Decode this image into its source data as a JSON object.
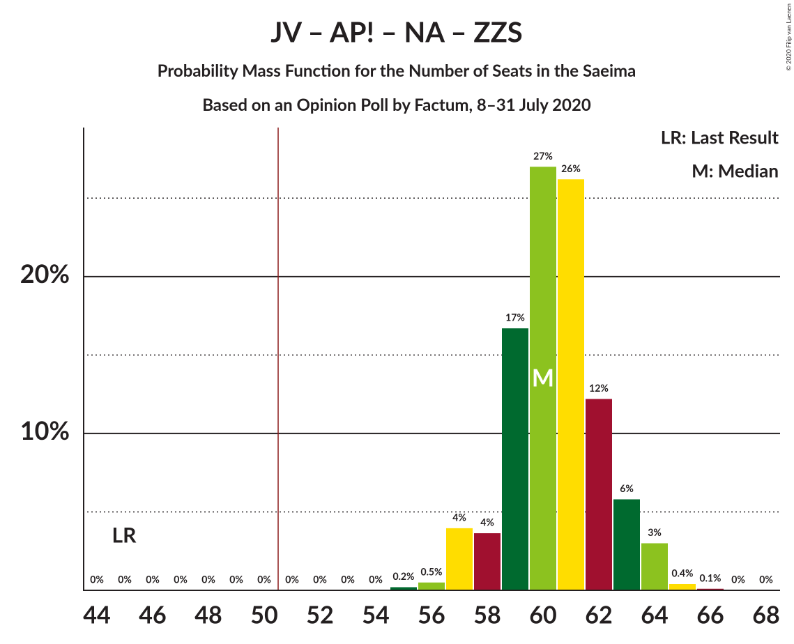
{
  "chart_data": {
    "type": "bar",
    "title": "JV – AP! – NA – ZZS",
    "subtitle": "Probability Mass Function for the Number of Seats in the Saeima",
    "subtitle2": "Based on an Opinion Poll by Factum, 8–31 July 2020",
    "copyright": "© 2020 Filip van Laenen",
    "categories": [
      44,
      null,
      46,
      null,
      48,
      null,
      50,
      null,
      52,
      null,
      54,
      null,
      56,
      null,
      58,
      null,
      60,
      null,
      62,
      null,
      64,
      null,
      66,
      null,
      68
    ],
    "values": [
      0,
      0,
      0,
      0,
      0,
      0,
      0,
      0,
      0,
      0,
      0,
      0.2,
      0.5,
      3.96,
      3.64,
      16.7,
      27.0,
      26.2,
      12.2,
      5.8,
      3.0,
      0.4,
      0.1,
      0,
      0
    ],
    "value_labels": [
      "0%",
      "0%",
      "0%",
      "0%",
      "0%",
      "0%",
      "0%",
      "0%",
      "0%",
      "0%",
      "0%",
      "0.2%",
      "0.5%",
      "4%",
      "4%",
      "17%",
      "27%",
      "26%",
      "12%",
      "6%",
      "3%",
      "0.4%",
      "0.1%",
      "0%",
      "0%"
    ],
    "colors": [
      "#8cc21f",
      "#ffdd00",
      "#a0102f",
      "#006a2f",
      "#8cc21f",
      "#ffdd00",
      "#a0102f",
      "#006a2f",
      "#8cc21f",
      "#ffdd00",
      "#a0102f",
      "#006a2f",
      "#8cc21f",
      "#ffdd00",
      "#a0102f",
      "#006a2f",
      "#8cc21f",
      "#ffdd00",
      "#a0102f",
      "#006a2f",
      "#8cc21f",
      "#ffdd00",
      "#a0102f",
      "#006a2f",
      "#8cc21f"
    ],
    "ylim": [
      0,
      29.5
    ],
    "yticks": [
      {
        "value": 10,
        "label": "10%"
      },
      {
        "value": 20,
        "label": "20%"
      }
    ],
    "minor_yticks": [
      5,
      15,
      25
    ],
    "grid": true,
    "last_result_line": 50.5,
    "last_result_label": "LR",
    "median_label": "M",
    "median_index": 16,
    "legend": [
      "LR: Last Result",
      "M: Median"
    ]
  }
}
